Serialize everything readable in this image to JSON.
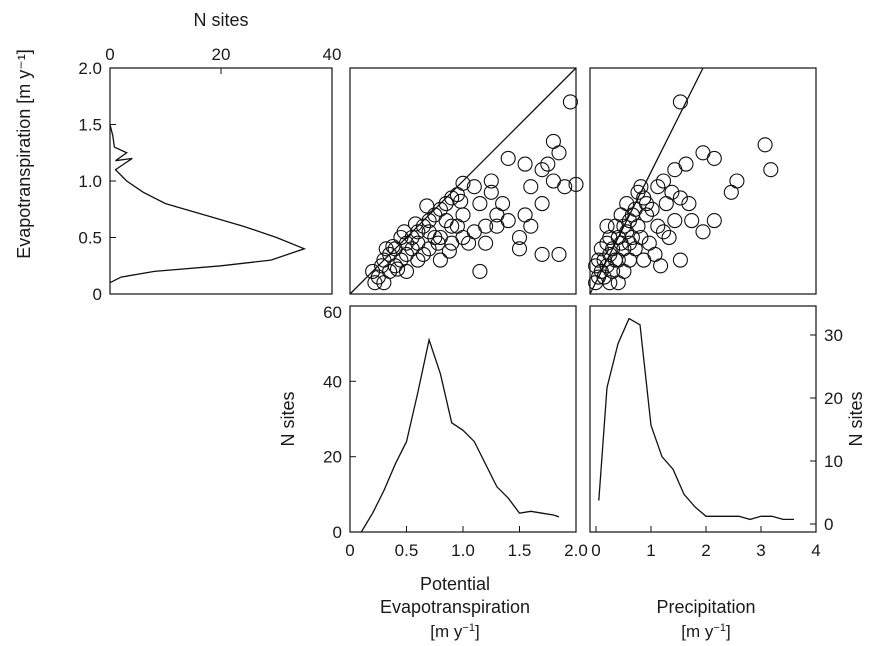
{
  "chart_data": [
    {
      "id": "et_hist",
      "type": "line",
      "orientation": "horizontal",
      "xlabel": "N sites",
      "ylabel": "Evapotranspiration [m y⁻¹]",
      "xlim": [
        0,
        40
      ],
      "ylim": [
        0,
        2.0
      ],
      "x_ticks": [
        "0",
        "20",
        "40"
      ],
      "y_ticks": [
        "0",
        "0.5",
        "1.0",
        "1.5",
        "2.0"
      ],
      "x_tick_values": [
        0,
        20,
        40
      ],
      "y_tick_values": [
        0,
        0.5,
        1.0,
        1.5,
        2.0
      ],
      "points": [
        [
          0,
          1.5
        ],
        [
          0.5,
          1.4
        ],
        [
          0.8,
          1.3
        ],
        [
          3,
          1.25
        ],
        [
          1,
          1.18
        ],
        [
          4,
          1.2
        ],
        [
          1,
          1.1
        ],
        [
          3,
          1.0
        ],
        [
          6,
          0.9
        ],
        [
          10,
          0.8
        ],
        [
          17,
          0.7
        ],
        [
          24,
          0.6
        ],
        [
          30,
          0.5
        ],
        [
          35,
          0.4
        ],
        [
          29,
          0.3
        ],
        [
          20,
          0.25
        ],
        [
          8,
          0.2
        ],
        [
          2,
          0.15
        ],
        [
          0,
          0.1
        ]
      ]
    },
    {
      "id": "et_vs_pet",
      "type": "scatter",
      "xlim": [
        0,
        2.0
      ],
      "ylim": [
        0,
        2.0
      ],
      "one_to_one_line": true,
      "points": [
        [
          0.2,
          0.2
        ],
        [
          0.25,
          0.15
        ],
        [
          0.3,
          0.1
        ],
        [
          0.22,
          0.1
        ],
        [
          0.35,
          0.2
        ],
        [
          0.3,
          0.3
        ],
        [
          0.4,
          0.25
        ],
        [
          0.45,
          0.3
        ],
        [
          0.5,
          0.35
        ],
        [
          0.4,
          0.4
        ],
        [
          0.35,
          0.35
        ],
        [
          0.5,
          0.45
        ],
        [
          0.55,
          0.5
        ],
        [
          0.6,
          0.55
        ],
        [
          0.65,
          0.6
        ],
        [
          0.7,
          0.65
        ],
        [
          0.75,
          0.7
        ],
        [
          0.8,
          0.75
        ],
        [
          0.85,
          0.8
        ],
        [
          0.9,
          0.85
        ],
        [
          0.95,
          0.88
        ],
        [
          0.5,
          0.2
        ],
        [
          0.6,
          0.3
        ],
        [
          0.7,
          0.4
        ],
        [
          0.8,
          0.3
        ],
        [
          0.9,
          0.45
        ],
        [
          1.0,
          0.5
        ],
        [
          1.1,
          0.55
        ],
        [
          1.2,
          0.6
        ],
        [
          1.3,
          0.7
        ],
        [
          1.4,
          0.65
        ],
        [
          1.5,
          0.5
        ],
        [
          1.6,
          0.6
        ],
        [
          1.7,
          0.8
        ],
        [
          1.8,
          1.0
        ],
        [
          1.5,
          0.4
        ],
        [
          1.7,
          0.35
        ],
        [
          1.85,
          0.35
        ],
        [
          1.9,
          0.95
        ],
        [
          2.0,
          0.97
        ],
        [
          1.95,
          1.7
        ],
        [
          1.8,
          1.35
        ],
        [
          1.85,
          1.25
        ],
        [
          1.7,
          1.1
        ],
        [
          1.55,
          1.15
        ],
        [
          1.4,
          1.2
        ],
        [
          1.25,
          1.0
        ],
        [
          1.1,
          0.95
        ],
        [
          1.0,
          0.98
        ],
        [
          1.15,
          0.8
        ],
        [
          1.0,
          0.7
        ],
        [
          0.9,
          0.6
        ],
        [
          0.8,
          0.5
        ],
        [
          0.7,
          0.55
        ],
        [
          0.6,
          0.45
        ],
        [
          0.55,
          0.4
        ],
        [
          0.45,
          0.5
        ],
        [
          0.42,
          0.22
        ],
        [
          0.38,
          0.42
        ],
        [
          0.65,
          0.35
        ],
        [
          0.75,
          0.5
        ],
        [
          0.85,
          0.65
        ],
        [
          0.95,
          0.6
        ],
        [
          1.05,
          0.45
        ],
        [
          1.2,
          0.45
        ],
        [
          1.3,
          0.6
        ],
        [
          1.15,
          0.2
        ],
        [
          1.25,
          0.9
        ],
        [
          1.35,
          0.8
        ],
        [
          1.55,
          0.7
        ],
        [
          1.6,
          0.95
        ],
        [
          1.75,
          1.15
        ],
        [
          0.28,
          0.25
        ],
        [
          0.32,
          0.4
        ],
        [
          0.48,
          0.55
        ],
        [
          0.58,
          0.62
        ],
        [
          0.68,
          0.78
        ],
        [
          0.78,
          0.45
        ],
        [
          0.88,
          0.38
        ],
        [
          0.98,
          0.82
        ]
      ]
    },
    {
      "id": "et_vs_precip",
      "type": "scatter",
      "xlim": [
        0,
        4
      ],
      "ylim": [
        0,
        2.0
      ],
      "one_to_one_line": true,
      "points": [
        [
          0.1,
          0.1
        ],
        [
          0.15,
          0.15
        ],
        [
          0.2,
          0.2
        ],
        [
          0.25,
          0.3
        ],
        [
          0.3,
          0.25
        ],
        [
          0.35,
          0.35
        ],
        [
          0.4,
          0.4
        ],
        [
          0.45,
          0.3
        ],
        [
          0.5,
          0.5
        ],
        [
          0.55,
          0.45
        ],
        [
          0.6,
          0.6
        ],
        [
          0.65,
          0.55
        ],
        [
          0.7,
          0.65
        ],
        [
          0.75,
          0.7
        ],
        [
          0.8,
          0.75
        ],
        [
          0.85,
          0.9
        ],
        [
          0.9,
          0.95
        ],
        [
          0.95,
          0.85
        ],
        [
          1.0,
          0.8
        ],
        [
          1.1,
          0.75
        ],
        [
          1.2,
          0.6
        ],
        [
          1.3,
          0.55
        ],
        [
          1.4,
          0.5
        ],
        [
          1.5,
          0.65
        ],
        [
          1.6,
          0.85
        ],
        [
          1.7,
          1.15
        ],
        [
          1.5,
          1.1
        ],
        [
          1.75,
          0.8
        ],
        [
          1.6,
          0.3
        ],
        [
          1.8,
          0.65
        ],
        [
          2.0,
          0.55
        ],
        [
          2.2,
          0.65
        ],
        [
          2.5,
          0.9
        ],
        [
          2.6,
          1.0
        ],
        [
          3.1,
          1.32
        ],
        [
          3.2,
          1.1
        ],
        [
          2.2,
          1.2
        ],
        [
          2.0,
          1.25
        ],
        [
          1.6,
          1.7
        ],
        [
          1.3,
          1.0
        ],
        [
          1.2,
          0.95
        ],
        [
          1.0,
          0.7
        ],
        [
          0.9,
          0.5
        ],
        [
          0.8,
          0.4
        ],
        [
          0.7,
          0.3
        ],
        [
          0.6,
          0.2
        ],
        [
          0.5,
          0.1
        ],
        [
          0.4,
          0.2
        ],
        [
          0.3,
          0.45
        ],
        [
          0.2,
          0.4
        ],
        [
          0.15,
          0.3
        ],
        [
          0.1,
          0.25
        ],
        [
          0.25,
          0.15
        ],
        [
          0.35,
          0.5
        ],
        [
          0.45,
          0.6
        ],
        [
          0.55,
          0.7
        ],
        [
          0.65,
          0.8
        ],
        [
          0.75,
          0.5
        ],
        [
          0.85,
          0.6
        ],
        [
          1.05,
          0.45
        ],
        [
          1.15,
          0.35
        ],
        [
          1.35,
          0.8
        ],
        [
          1.45,
          0.9
        ],
        [
          1.25,
          0.25
        ],
        [
          0.95,
          0.3
        ],
        [
          0.35,
          0.1
        ],
        [
          0.5,
          0.3
        ],
        [
          0.6,
          0.4
        ],
        [
          0.7,
          0.45
        ],
        [
          0.3,
          0.6
        ]
      ]
    },
    {
      "id": "pet_hist",
      "type": "line",
      "xlabel": "Potential Evapotranspiration [m y⁻¹]",
      "ylabel": "N sites",
      "xlim": [
        0,
        2.0
      ],
      "ylim": [
        0,
        60
      ],
      "x_ticks": [
        "0",
        "0.5",
        "1.0",
        "1.5",
        "2.0"
      ],
      "y_ticks": [
        "0",
        "20",
        "40",
        "60"
      ],
      "x_tick_values": [
        0,
        0.5,
        1.0,
        1.5,
        2.0
      ],
      "y_tick_values": [
        0,
        20,
        40,
        60
      ],
      "points": [
        [
          0.1,
          0
        ],
        [
          0.2,
          5
        ],
        [
          0.3,
          11
        ],
        [
          0.4,
          18
        ],
        [
          0.5,
          24
        ],
        [
          0.6,
          37
        ],
        [
          0.7,
          51
        ],
        [
          0.8,
          42
        ],
        [
          0.9,
          29
        ],
        [
          1.0,
          27
        ],
        [
          1.1,
          24
        ],
        [
          1.2,
          18
        ],
        [
          1.3,
          12
        ],
        [
          1.4,
          9
        ],
        [
          1.5,
          5
        ],
        [
          1.6,
          5.5
        ],
        [
          1.7,
          5
        ],
        [
          1.8,
          4.5
        ],
        [
          1.85,
          4
        ]
      ]
    },
    {
      "id": "precip_hist",
      "type": "line",
      "xlabel": "Precipitation [m y⁻¹]",
      "ylabel": "N sites",
      "xlim": [
        0,
        4
      ],
      "ylim": [
        -2,
        34
      ],
      "x_ticks": [
        "0",
        "1",
        "2",
        "3",
        "4"
      ],
      "y_ticks": [
        "0",
        "10",
        "20",
        "30"
      ],
      "x_tick_values": [
        0,
        1,
        2,
        3,
        4
      ],
      "y_tick_values": [
        0,
        10,
        20,
        30
      ],
      "points": [
        [
          0.05,
          3
        ],
        [
          0.2,
          21
        ],
        [
          0.4,
          28
        ],
        [
          0.6,
          32
        ],
        [
          0.8,
          31
        ],
        [
          1.0,
          15
        ],
        [
          1.2,
          10
        ],
        [
          1.4,
          8
        ],
        [
          1.6,
          4
        ],
        [
          1.8,
          2
        ],
        [
          2.0,
          0.5
        ],
        [
          2.2,
          0.5
        ],
        [
          2.4,
          0.5
        ],
        [
          2.6,
          0.5
        ],
        [
          2.8,
          0
        ],
        [
          3.0,
          0.5
        ],
        [
          3.2,
          0.5
        ],
        [
          3.4,
          0
        ],
        [
          3.6,
          0
        ]
      ]
    }
  ]
}
